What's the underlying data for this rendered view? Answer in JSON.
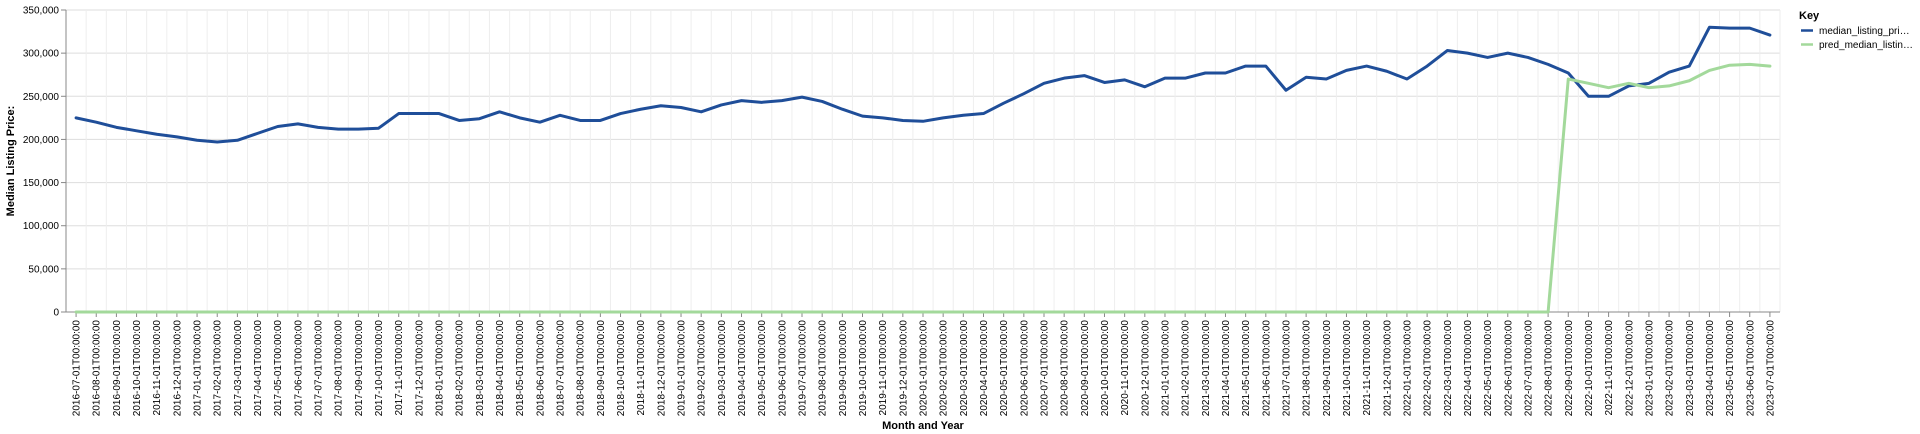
{
  "chart_data": {
    "type": "line",
    "xlabel": "Month and Year",
    "ylabel": "Median Listing Price:",
    "ylim": [
      0,
      350000
    ],
    "yticks": [
      "0",
      "50,000",
      "100,000",
      "150,000",
      "200,000",
      "250,000",
      "300,000",
      "350,000"
    ],
    "grid": true,
    "legend": {
      "title": "Key",
      "placement": "right",
      "entries": [
        "median_listing_pri…",
        "pred_median_listin…"
      ]
    },
    "x": [
      "2016-07-01T00:00:00",
      "2016-08-01T00:00:00",
      "2016-09-01T00:00:00",
      "2016-10-01T00:00:00",
      "2016-11-01T00:00:00",
      "2016-12-01T00:00:00",
      "2017-01-01T00:00:00",
      "2017-02-01T00:00:00",
      "2017-03-01T00:00:00",
      "2017-04-01T00:00:00",
      "2017-05-01T00:00:00",
      "2017-06-01T00:00:00",
      "2017-07-01T00:00:00",
      "2017-08-01T00:00:00",
      "2017-09-01T00:00:00",
      "2017-10-01T00:00:00",
      "2017-11-01T00:00:00",
      "2017-12-01T00:00:00",
      "2018-01-01T00:00:00",
      "2018-02-01T00:00:00",
      "2018-03-01T00:00:00",
      "2018-04-01T00:00:00",
      "2018-05-01T00:00:00",
      "2018-06-01T00:00:00",
      "2018-07-01T00:00:00",
      "2018-08-01T00:00:00",
      "2018-09-01T00:00:00",
      "2018-10-01T00:00:00",
      "2018-11-01T00:00:00",
      "2018-12-01T00:00:00",
      "2019-01-01T00:00:00",
      "2019-02-01T00:00:00",
      "2019-03-01T00:00:00",
      "2019-04-01T00:00:00",
      "2019-05-01T00:00:00",
      "2019-06-01T00:00:00",
      "2019-07-01T00:00:00",
      "2019-08-01T00:00:00",
      "2019-09-01T00:00:00",
      "2019-10-01T00:00:00",
      "2019-11-01T00:00:00",
      "2019-12-01T00:00:00",
      "2020-01-01T00:00:00",
      "2020-02-01T00:00:00",
      "2020-03-01T00:00:00",
      "2020-04-01T00:00:00",
      "2020-05-01T00:00:00",
      "2020-06-01T00:00:00",
      "2020-07-01T00:00:00",
      "2020-08-01T00:00:00",
      "2020-09-01T00:00:00",
      "2020-10-01T00:00:00",
      "2020-11-01T00:00:00",
      "2020-12-01T00:00:00",
      "2021-01-01T00:00:00",
      "2021-02-01T00:00:00",
      "2021-03-01T00:00:00",
      "2021-04-01T00:00:00",
      "2021-05-01T00:00:00",
      "2021-06-01T00:00:00",
      "2021-07-01T00:00:00",
      "2021-08-01T00:00:00",
      "2021-09-01T00:00:00",
      "2021-10-01T00:00:00",
      "2021-11-01T00:00:00",
      "2021-12-01T00:00:00",
      "2022-01-01T00:00:00",
      "2022-02-01T00:00:00",
      "2022-03-01T00:00:00",
      "2022-04-01T00:00:00",
      "2022-05-01T00:00:00",
      "2022-06-01T00:00:00",
      "2022-07-01T00:00:00",
      "2022-08-01T00:00:00",
      "2022-09-01T00:00:00",
      "2022-10-01T00:00:00",
      "2022-11-01T00:00:00",
      "2022-12-01T00:00:00",
      "2023-01-01T00:00:00",
      "2023-02-01T00:00:00",
      "2023-03-01T00:00:00",
      "2023-04-01T00:00:00",
      "2023-05-01T00:00:00",
      "2023-06-01T00:00:00",
      "2023-07-01T00:00:00"
    ],
    "series": [
      {
        "name": "median_listing_pri…",
        "color": "#1f4e99",
        "values": [
          225000,
          220000,
          214000,
          210000,
          206000,
          203000,
          199000,
          197000,
          199000,
          207000,
          215000,
          218000,
          214000,
          212000,
          212000,
          213000,
          230000,
          230000,
          230000,
          222000,
          224000,
          232000,
          225000,
          220000,
          228000,
          222000,
          222000,
          230000,
          235000,
          239000,
          237000,
          232000,
          240000,
          245000,
          243000,
          245000,
          249000,
          244000,
          235000,
          227000,
          225000,
          222000,
          221000,
          225000,
          228000,
          230000,
          242000,
          253000,
          265000,
          271000,
          274000,
          266000,
          269000,
          261000,
          271000,
          271000,
          277000,
          277000,
          285000,
          285000,
          257000,
          272000,
          270000,
          280000,
          285000,
          279000,
          270000,
          285000,
          303000,
          300000,
          295000,
          300000,
          295000,
          287000,
          277000,
          250000,
          250000,
          262000,
          265000,
          278000,
          285000,
          330000,
          329000,
          329000,
          321000
        ]
      },
      {
        "name": "pred_median_listin…",
        "color": "#a3d99b",
        "values": [
          0,
          0,
          0,
          0,
          0,
          0,
          0,
          0,
          0,
          0,
          0,
          0,
          0,
          0,
          0,
          0,
          0,
          0,
          0,
          0,
          0,
          0,
          0,
          0,
          0,
          0,
          0,
          0,
          0,
          0,
          0,
          0,
          0,
          0,
          0,
          0,
          0,
          0,
          0,
          0,
          0,
          0,
          0,
          0,
          0,
          0,
          0,
          0,
          0,
          0,
          0,
          0,
          0,
          0,
          0,
          0,
          0,
          0,
          0,
          0,
          0,
          0,
          0,
          0,
          0,
          0,
          0,
          0,
          0,
          0,
          0,
          0,
          0,
          0,
          270000,
          265000,
          260000,
          265000,
          260000,
          262000,
          268000,
          280000,
          286000,
          287000,
          285000
        ]
      }
    ]
  }
}
